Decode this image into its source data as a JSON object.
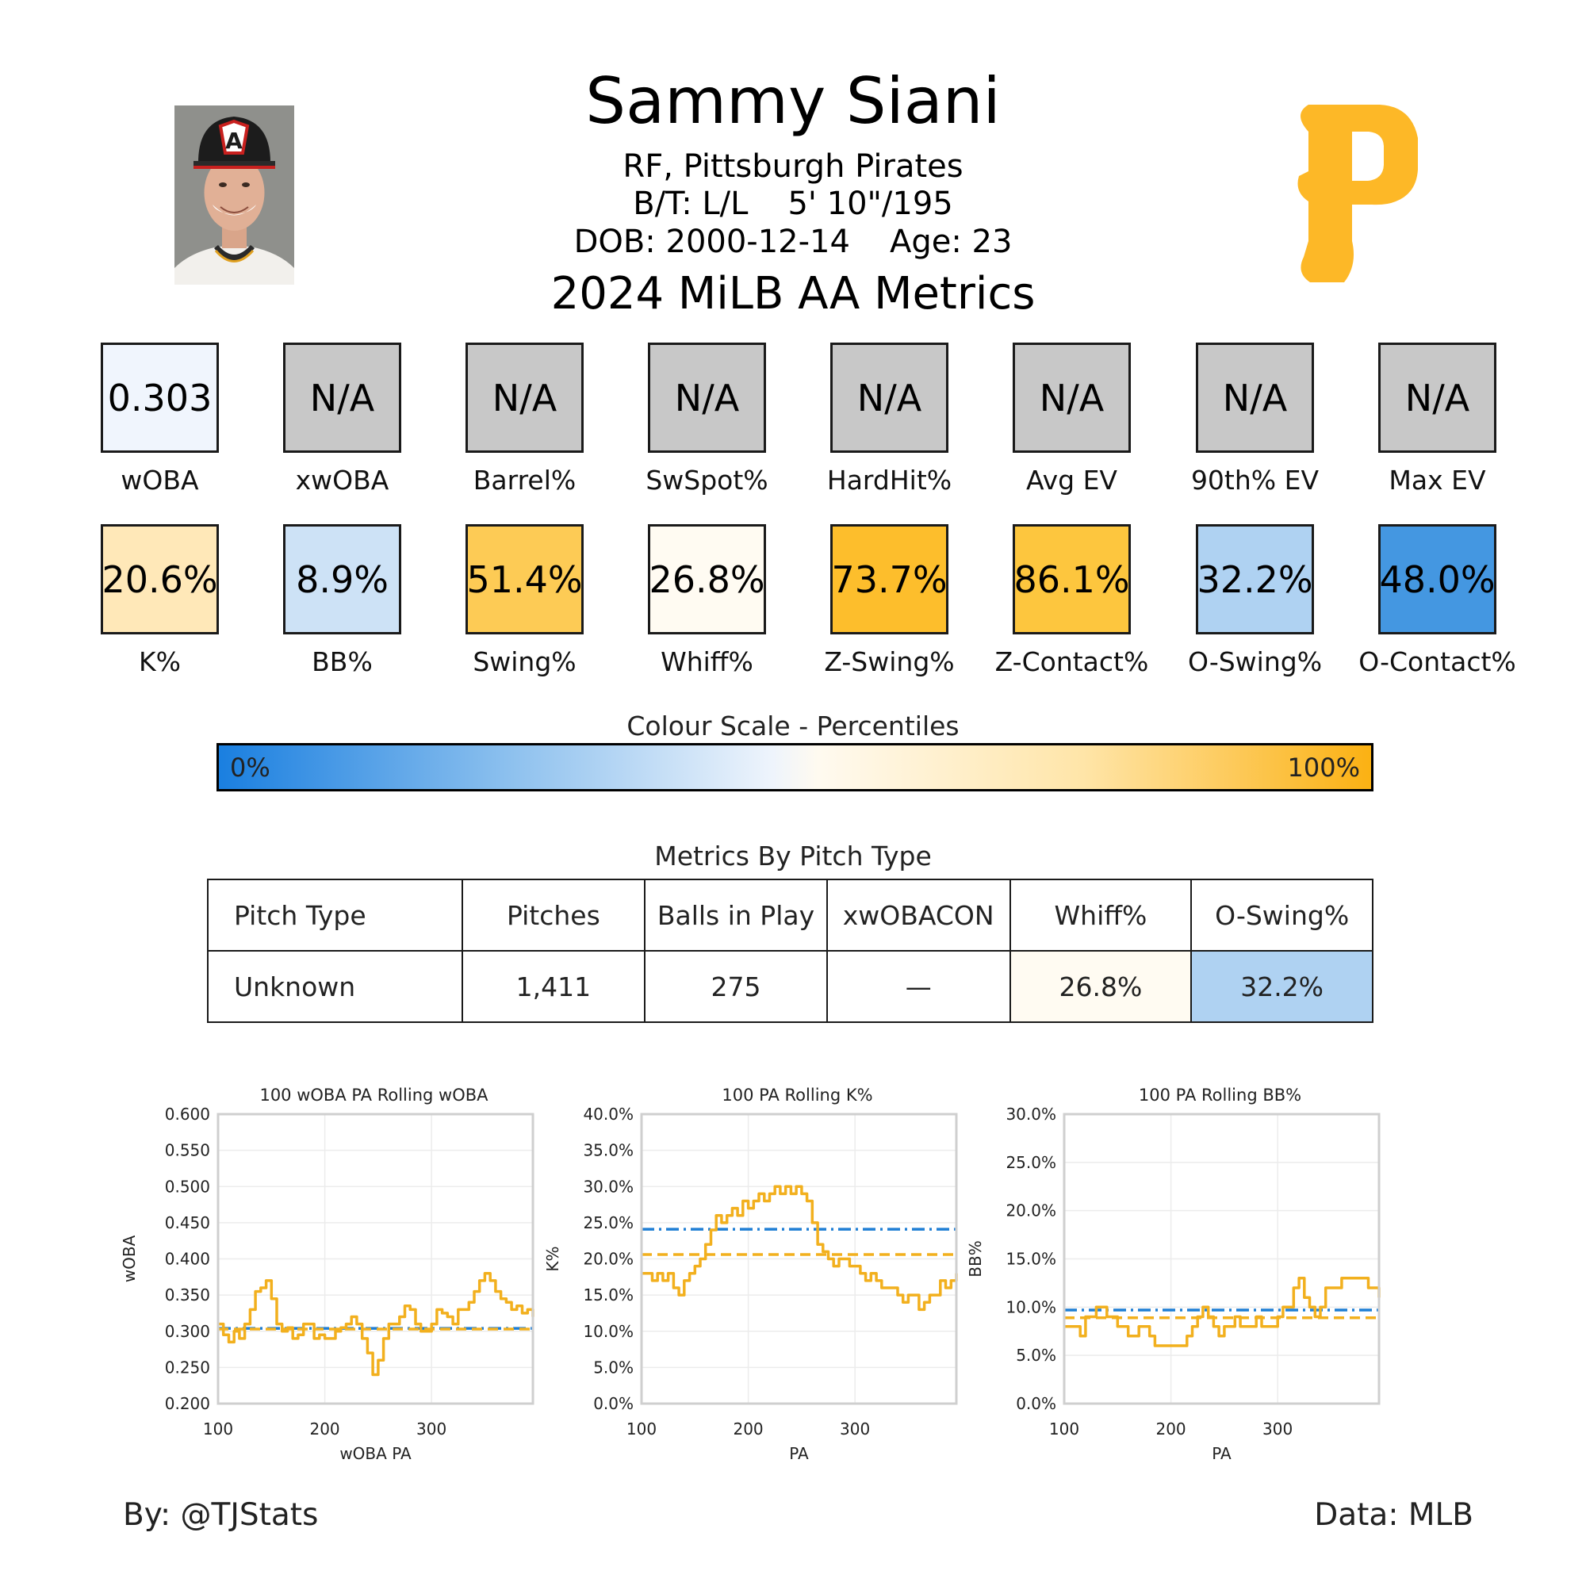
{
  "header": {
    "name": "Sammy Siani",
    "position_team": "RF, Pittsburgh Pirates",
    "bats_throws": "B/T: L/L",
    "height_weight": "5' 10\"/195",
    "dob": "DOB: 2000-12-14",
    "age": "Age: 23",
    "season_title": "2024 MiLB AA Metrics",
    "logo_letter": "P"
  },
  "colors": {
    "team_gold": "#FDB827",
    "line_gold": "#F2B01E",
    "league_blue": "#1F7ED4",
    "na_gray": "#C8C8C8"
  },
  "metrics_row1": [
    {
      "label": "wOBA",
      "value": "0.303",
      "color": "#F0F5FD"
    },
    {
      "label": "xwOBA",
      "value": "N/A",
      "color": "#C8C8C8"
    },
    {
      "label": "Barrel%",
      "value": "N/A",
      "color": "#C8C8C8"
    },
    {
      "label": "SwSpot%",
      "value": "N/A",
      "color": "#C8C8C8"
    },
    {
      "label": "HardHit%",
      "value": "N/A",
      "color": "#C8C8C8"
    },
    {
      "label": "Avg EV",
      "value": "N/A",
      "color": "#C8C8C8"
    },
    {
      "label": "90th% EV",
      "value": "N/A",
      "color": "#C8C8C8"
    },
    {
      "label": "Max EV",
      "value": "N/A",
      "color": "#C8C8C8"
    }
  ],
  "metrics_row2": [
    {
      "label": "K%",
      "value": "20.6%",
      "color": "#FFE8B8"
    },
    {
      "label": "BB%",
      "value": "8.9%",
      "color": "#CDE2F6"
    },
    {
      "label": "Swing%",
      "value": "51.4%",
      "color": "#FDCB55"
    },
    {
      "label": "Whiff%",
      "value": "26.8%",
      "color": "#FFFBF2"
    },
    {
      "label": "Z-Swing%",
      "value": "73.7%",
      "color": "#FDBE2C"
    },
    {
      "label": "Z-Contact%",
      "value": "86.1%",
      "color": "#FDC63E"
    },
    {
      "label": "O-Swing%",
      "value": "32.2%",
      "color": "#AFD2F2"
    },
    {
      "label": "O-Contact%",
      "value": "48.0%",
      "color": "#4497E1"
    }
  ],
  "colour_scale": {
    "title": "Colour Scale - Percentiles",
    "low_label": "0%",
    "high_label": "100%"
  },
  "pitch_table": {
    "title": "Metrics By Pitch Type",
    "headers": [
      "Pitch Type",
      "Pitches",
      "Balls in Play",
      "xwOBACON",
      "Whiff%",
      "O-Swing%"
    ],
    "rows": [
      {
        "cells": [
          "Unknown",
          "1,411",
          "275",
          "—",
          "26.8%",
          "32.2%"
        ],
        "colors": [
          "#FFFFFF",
          "#FFFFFF",
          "#FFFFFF",
          "#FFFFFF",
          "#FFFBF2",
          "#AFD2F2"
        ]
      }
    ]
  },
  "chart_data": [
    {
      "type": "line",
      "title": "100 wOBA PA Rolling wOBA",
      "xlabel": "wOBA PA",
      "ylabel": "wOBA",
      "xlim": [
        100,
        395
      ],
      "ylim": [
        0.2,
        0.6
      ],
      "xticks": [
        100,
        200,
        300
      ],
      "xtick_labels": [
        "100",
        "200",
        "300"
      ],
      "yticks": [
        0.2,
        0.25,
        0.3,
        0.35,
        0.4,
        0.45,
        0.5,
        0.55,
        0.6
      ],
      "ytick_labels": [
        "0.200",
        "0.250",
        "0.300",
        "0.350",
        "0.400",
        "0.450",
        "0.500",
        "0.550",
        "0.600"
      ],
      "grid": true,
      "reference_lines": [
        {
          "style": "dashdot",
          "color": "#1F7ED4",
          "y": 0.304
        },
        {
          "style": "dashed",
          "color": "#F2B01E",
          "y": 0.303
        }
      ],
      "series": [
        {
          "color": "#F2B01E",
          "x": [
            100,
            105,
            110,
            115,
            120,
            125,
            130,
            135,
            140,
            145,
            150,
            155,
            160,
            165,
            170,
            175,
            180,
            185,
            190,
            195,
            200,
            205,
            210,
            215,
            220,
            225,
            230,
            235,
            240,
            245,
            250,
            255,
            260,
            265,
            270,
            275,
            280,
            285,
            290,
            295,
            300,
            305,
            310,
            315,
            320,
            325,
            330,
            335,
            340,
            345,
            350,
            355,
            360,
            365,
            370,
            375,
            380,
            385,
            390,
            395
          ],
          "y": [
            0.31,
            0.295,
            0.285,
            0.3,
            0.29,
            0.31,
            0.33,
            0.355,
            0.36,
            0.37,
            0.345,
            0.31,
            0.3,
            0.305,
            0.29,
            0.295,
            0.31,
            0.31,
            0.29,
            0.295,
            0.29,
            0.29,
            0.3,
            0.305,
            0.31,
            0.32,
            0.31,
            0.29,
            0.27,
            0.24,
            0.26,
            0.29,
            0.31,
            0.31,
            0.32,
            0.335,
            0.33,
            0.31,
            0.3,
            0.3,
            0.31,
            0.33,
            0.325,
            0.32,
            0.31,
            0.33,
            0.33,
            0.34,
            0.355,
            0.37,
            0.38,
            0.37,
            0.355,
            0.345,
            0.34,
            0.33,
            0.335,
            0.325,
            0.33,
            0.32
          ]
        }
      ]
    },
    {
      "type": "line",
      "title": "100 PA Rolling K%",
      "xlabel": "PA",
      "ylabel": "K%",
      "xlim": [
        100,
        395
      ],
      "ylim": [
        0,
        40
      ],
      "xticks": [
        100,
        200,
        300
      ],
      "xtick_labels": [
        "100",
        "200",
        "300"
      ],
      "yticks": [
        0,
        5,
        10,
        15,
        20,
        25,
        30,
        35,
        40
      ],
      "ytick_labels": [
        "0.0%",
        "5.0%",
        "10.0%",
        "15.0%",
        "20.0%",
        "25.0%",
        "30.0%",
        "35.0%",
        "40.0%"
      ],
      "grid": true,
      "reference_lines": [
        {
          "style": "dashdot",
          "color": "#1F7ED4",
          "y": 24.1
        },
        {
          "style": "dashed",
          "color": "#F2B01E",
          "y": 20.6
        }
      ],
      "series": [
        {
          "color": "#F2B01E",
          "x": [
            100,
            105,
            110,
            115,
            120,
            125,
            130,
            135,
            140,
            145,
            150,
            155,
            160,
            165,
            170,
            175,
            180,
            185,
            190,
            195,
            200,
            205,
            210,
            215,
            220,
            225,
            230,
            235,
            240,
            245,
            250,
            255,
            260,
            265,
            270,
            275,
            280,
            285,
            290,
            295,
            300,
            305,
            310,
            315,
            320,
            325,
            330,
            335,
            340,
            345,
            350,
            355,
            360,
            365,
            370,
            375,
            380,
            385,
            390,
            395
          ],
          "y": [
            18,
            18,
            17,
            18,
            17,
            18,
            16,
            15,
            17,
            18,
            19,
            20,
            22,
            24,
            26,
            25,
            26,
            27,
            26,
            28,
            27,
            28,
            29,
            28,
            29,
            30,
            29,
            30,
            29,
            30,
            29,
            28,
            25,
            22,
            21,
            20,
            19,
            20,
            20,
            19,
            19,
            18,
            17,
            18,
            17,
            16,
            16,
            16,
            15,
            14,
            15,
            15,
            13,
            14,
            15,
            15,
            17,
            16,
            17,
            18
          ]
        }
      ]
    },
    {
      "type": "line",
      "title": "100 PA Rolling BB%",
      "xlabel": "PA",
      "ylabel": "BB%",
      "xlim": [
        100,
        395
      ],
      "ylim": [
        0,
        30
      ],
      "xticks": [
        100,
        200,
        300
      ],
      "xtick_labels": [
        "100",
        "200",
        "300"
      ],
      "yticks": [
        0,
        5,
        10,
        15,
        20,
        25,
        30
      ],
      "ytick_labels": [
        "0.0%",
        "5.0%",
        "10.0%",
        "15.0%",
        "20.0%",
        "25.0%",
        "30.0%"
      ],
      "grid": true,
      "reference_lines": [
        {
          "style": "dashdot",
          "color": "#1F7ED4",
          "y": 9.7
        },
        {
          "style": "dashed",
          "color": "#F2B01E",
          "y": 8.9
        }
      ],
      "series": [
        {
          "color": "#F2B01E",
          "x": [
            100,
            105,
            110,
            115,
            120,
            125,
            130,
            135,
            140,
            145,
            150,
            155,
            160,
            165,
            170,
            175,
            180,
            185,
            190,
            195,
            200,
            205,
            210,
            215,
            220,
            225,
            230,
            235,
            240,
            245,
            250,
            255,
            260,
            265,
            270,
            275,
            280,
            285,
            290,
            295,
            300,
            305,
            310,
            315,
            320,
            325,
            330,
            335,
            340,
            345,
            350,
            355,
            360,
            365,
            370,
            375,
            380,
            385,
            390,
            395
          ],
          "y": [
            8,
            8,
            8,
            7,
            9,
            9,
            10,
            10,
            9,
            9,
            8,
            8,
            7,
            7,
            8,
            8,
            7,
            6,
            6,
            6,
            6,
            6,
            6,
            7,
            8,
            9,
            10,
            9,
            8,
            7,
            8,
            8,
            9,
            8,
            8,
            8,
            9,
            8,
            8,
            8,
            9,
            10,
            10,
            12,
            13,
            11,
            10,
            9,
            10,
            12,
            12,
            12,
            13,
            13,
            13,
            13,
            13,
            12,
            12,
            11
          ]
        }
      ]
    }
  ],
  "footer": {
    "credit": "By: @TJStats",
    "source": "Data: MLB"
  }
}
